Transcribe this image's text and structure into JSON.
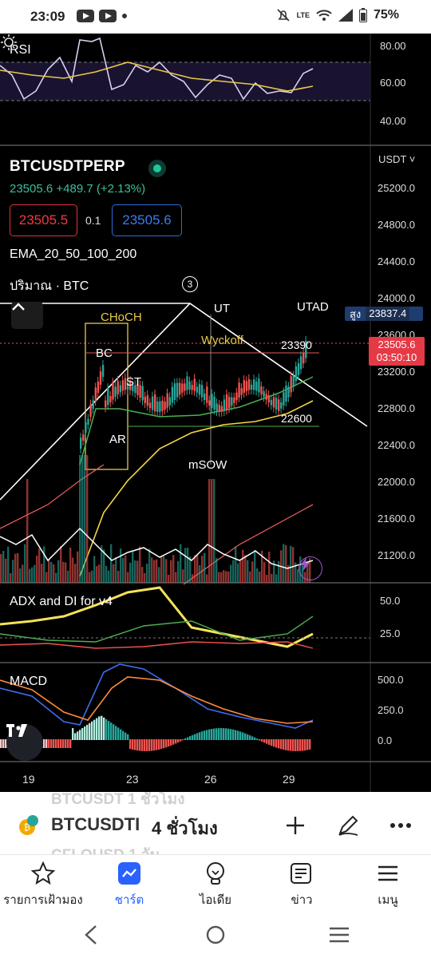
{
  "status": {
    "time": "23:09",
    "battery": "75%",
    "network": "LTE"
  },
  "rsi": {
    "label": "RSI",
    "axis": [
      "80.00",
      "60.00",
      "40.00"
    ]
  },
  "symbol": {
    "name": "BTCUSDTPERP",
    "price_line": "23505.6  +489.7 (+2.13%)",
    "bid": "23505.5",
    "spread": "0.1",
    "ask": "23505.6",
    "ema_label": "EMA_20_50_100_200",
    "volume_label": "ปริมาณ · BTC",
    "marker": "3",
    "currency": "USDT"
  },
  "price_axis": [
    "25200.0",
    "24800.0",
    "24400.0",
    "24000.0",
    "23600.0",
    "23200.0",
    "22800.0",
    "22400.0",
    "22000.0",
    "21600.0",
    "21200.0"
  ],
  "high_tag": {
    "label": "สูง",
    "value": "23837.4"
  },
  "price_tag": {
    "value": "23505.6",
    "countdown": "03:50:10"
  },
  "annotations": {
    "choch": "CHoCH",
    "bc": "BC",
    "st": "ST",
    "ar": "AR",
    "ut": "UT",
    "utad": "UTAD",
    "wyckoff": "Wyckoff",
    "msow": "mSOW",
    "level_high": "23390",
    "level_low": "22600"
  },
  "adx": {
    "label": "ADX and DI for v4",
    "axis": [
      "50.0",
      "25.0"
    ]
  },
  "macd": {
    "label": "MACD",
    "axis": [
      "500.0",
      "250.0",
      "0.0"
    ]
  },
  "dates": [
    "19",
    "23",
    "26",
    "29"
  ],
  "sheet": {
    "symbol": "BTCUSDTI",
    "interval": "4 ชั่วโมง",
    "ghost_top": "BTCUSDT  1 ชั่วโมง",
    "ghost_bottom": "CFLOUSD  1 วัน"
  },
  "nav": [
    {
      "label": "รายการเฝ้ามอง",
      "icon": "star-icon"
    },
    {
      "label": "ชาร์ต",
      "icon": "chart-icon"
    },
    {
      "label": "ไอเดีย",
      "icon": "bulb-icon"
    },
    {
      "label": "ข่าว",
      "icon": "news-icon"
    },
    {
      "label": "เมนู",
      "icon": "menu-icon"
    }
  ],
  "colors": {
    "up": "#26a69a",
    "down": "#ef5350",
    "accent": "#2962ff",
    "ema_yellow": "#f5d442",
    "ema_green": "#4caf50"
  }
}
